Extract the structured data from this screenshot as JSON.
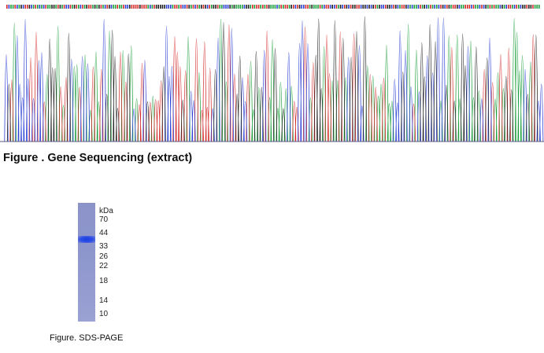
{
  "sequencing": {
    "title": "Figure . Gene Sequencing (extract)",
    "base_colors": {
      "A": "#1a9e3a",
      "T": "#d42a2a",
      "C": "#2a3fd4",
      "G": "#222222"
    }
  },
  "sds_page": {
    "caption": "Figure. SDS-PAGE",
    "unit_label": "kDa",
    "markers": [
      "70",
      "44",
      "33",
      "26",
      "22",
      "18",
      "14",
      "10"
    ],
    "band_color": "#1b3fe0",
    "gel_color": "#8c93c9"
  }
}
